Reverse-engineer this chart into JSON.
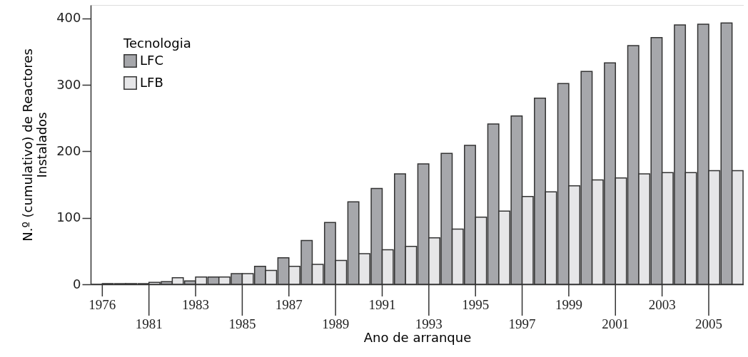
{
  "chart_data": {
    "type": "bar",
    "categories": [
      "1976",
      null,
      "1981",
      null,
      "1983",
      null,
      "1985",
      null,
      "1987",
      null,
      "1989",
      null,
      "1991",
      null,
      "1993",
      null,
      "1995",
      null,
      "1997",
      null,
      "1999",
      null,
      "2001",
      null,
      "2003",
      null,
      "2005",
      null
    ],
    "series": [
      {
        "name": "LFC",
        "color": "#a6a7ab",
        "values": [
          0,
          1,
          1,
          4,
          5,
          11,
          16,
          27,
          40,
          66,
          93,
          124,
          144,
          166,
          181,
          197,
          209,
          241,
          253,
          280,
          302,
          320,
          333,
          359,
          371,
          390,
          391,
          393
        ]
      },
      {
        "name": "LFB",
        "color": "#e6e6e8",
        "values": [
          1,
          1,
          3,
          10,
          11,
          11,
          16,
          21,
          27,
          30,
          36,
          46,
          52,
          57,
          70,
          83,
          101,
          110,
          132,
          139,
          148,
          157,
          160,
          166,
          168,
          168,
          171,
          171
        ]
      }
    ],
    "xlabel": "Ano de arranque",
    "ylabel": "N.º (cumulativo) de Reactores Instalados",
    "legend_title": "Tecnologia",
    "ylim": [
      0,
      420
    ],
    "yticks": [
      0,
      100,
      200,
      300,
      400
    ],
    "grid": false,
    "legend": "top left"
  }
}
